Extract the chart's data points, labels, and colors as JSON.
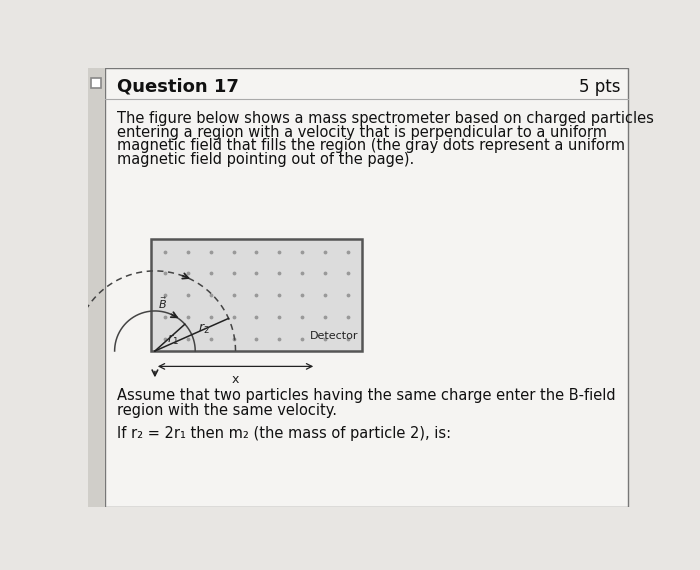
{
  "bg_color": "#e8e6e3",
  "card_bg": "#f5f4f2",
  "title": "Question 17",
  "pts": "5 pts",
  "title_fontsize": 13,
  "body_text_line1": "The figure below shows a mass spectrometer based on charged particles",
  "body_text_line2": "entering a region with a velocity that is perpendicular to a uniform",
  "body_text_line3": "magnetic field that fills the region (the gray dots represent a uniform",
  "body_text_line4": "magnetic field pointing out of the page).",
  "body_fontsize": 10.5,
  "assume_line1": "Assume that two particles having the same charge enter the B-field",
  "assume_line2": "region with the same velocity.",
  "question_line": "If r₂ = 2r₁ then m₂ (the mass of particle 2), is:",
  "question_fontsize": 10.5,
  "dot_color": "#999999",
  "arc_color": "#444444",
  "line_color": "#222222",
  "box_edge_color": "#777777",
  "diagram_fill": "#dcdcdc",
  "left_bar_color": "#bbbbbb",
  "header_line_color": "#aaaaaa",
  "text_color": "#111111"
}
